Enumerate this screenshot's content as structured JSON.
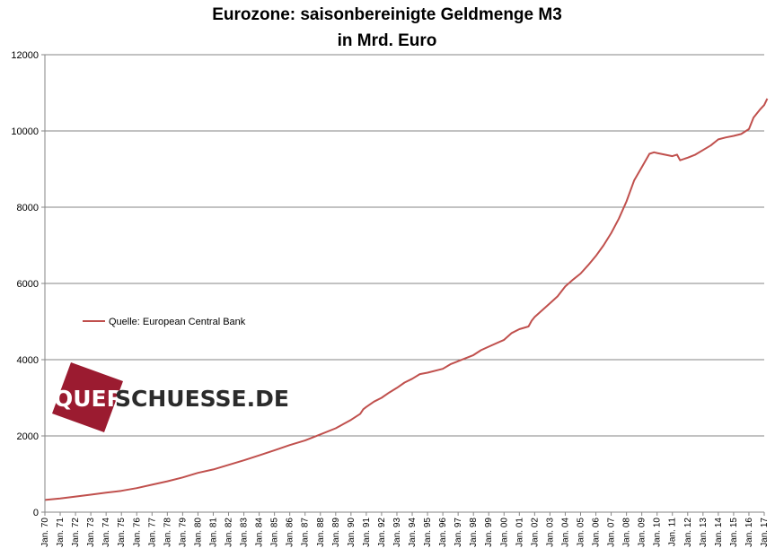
{
  "chart_data": {
    "type": "line",
    "title": "Eurozone: saisonbereinigte Geldmenge M3",
    "subtitle": "in Mrd. Euro",
    "ylim": [
      0,
      12000
    ],
    "y_ticks": [
      "0",
      "2000",
      "4000",
      "6000",
      "8000",
      "10000",
      "12000"
    ],
    "x_tick_labels": [
      "Jan. 70",
      "Jan. 71",
      "Jan. 72",
      "Jan. 73",
      "Jan. 74",
      "Jan. 75",
      "Jan. 76",
      "Jan. 77",
      "Jan. 78",
      "Jan. 79",
      "Jan. 80",
      "Jan. 81",
      "Jan. 82",
      "Jan. 83",
      "Jan. 84",
      "Jan. 85",
      "Jan. 86",
      "Jan. 87",
      "Jan. 88",
      "Jan. 89",
      "Jan. 90",
      "Jan. 91",
      "Jan. 92",
      "Jan. 93",
      "Jan. 94",
      "Jan. 95",
      "Jan. 96",
      "Jan. 97",
      "Jan. 98",
      "Jan. 99",
      "Jan. 00",
      "Jan. 01",
      "Jan. 02",
      "Jan. 03",
      "Jan. 04",
      "Jan. 05",
      "Jan. 06",
      "Jan. 07",
      "Jan. 08",
      "Jan. 09",
      "Jan. 10",
      "Jan. 11",
      "Jan. 12",
      "Jan. 13",
      "Jan. 14",
      "Jan. 15",
      "Jan. 16",
      "Jan. 17"
    ],
    "grid": true,
    "legend_position": "left-middle",
    "series": [
      {
        "name": "Quelle: European Central Bank",
        "color": "#c0504d",
        "points": [
          [
            1970.0,
            320
          ],
          [
            1971.0,
            360
          ],
          [
            1972.0,
            410
          ],
          [
            1973.0,
            460
          ],
          [
            1974.0,
            510
          ],
          [
            1975.0,
            560
          ],
          [
            1976.0,
            630
          ],
          [
            1977.0,
            720
          ],
          [
            1978.0,
            810
          ],
          [
            1979.0,
            910
          ],
          [
            1980.0,
            1030
          ],
          [
            1981.0,
            1120
          ],
          [
            1982.0,
            1240
          ],
          [
            1983.0,
            1360
          ],
          [
            1984.0,
            1490
          ],
          [
            1985.0,
            1620
          ],
          [
            1986.0,
            1760
          ],
          [
            1987.0,
            1880
          ],
          [
            1988.0,
            2040
          ],
          [
            1989.0,
            2200
          ],
          [
            1990.0,
            2420
          ],
          [
            1990.6,
            2580
          ],
          [
            1990.8,
            2700
          ],
          [
            1991.0,
            2760
          ],
          [
            1991.5,
            2900
          ],
          [
            1992.0,
            3000
          ],
          [
            1992.5,
            3140
          ],
          [
            1993.0,
            3260
          ],
          [
            1993.5,
            3400
          ],
          [
            1994.0,
            3500
          ],
          [
            1994.5,
            3620
          ],
          [
            1995.0,
            3660
          ],
          [
            1996.0,
            3760
          ],
          [
            1996.5,
            3880
          ],
          [
            1997.0,
            3960
          ],
          [
            1998.0,
            4120
          ],
          [
            1998.5,
            4250
          ],
          [
            1999.0,
            4340
          ],
          [
            2000.0,
            4520
          ],
          [
            2000.5,
            4700
          ],
          [
            2001.0,
            4800
          ],
          [
            2001.6,
            4870
          ],
          [
            2001.8,
            5020
          ],
          [
            2002.0,
            5120
          ],
          [
            2002.5,
            5300
          ],
          [
            2003.0,
            5480
          ],
          [
            2003.5,
            5660
          ],
          [
            2004.0,
            5920
          ],
          [
            2004.5,
            6100
          ],
          [
            2005.0,
            6260
          ],
          [
            2005.5,
            6480
          ],
          [
            2006.0,
            6720
          ],
          [
            2006.5,
            7000
          ],
          [
            2007.0,
            7320
          ],
          [
            2007.5,
            7700
          ],
          [
            2008.0,
            8150
          ],
          [
            2008.5,
            8700
          ],
          [
            2009.0,
            9050
          ],
          [
            2009.5,
            9400
          ],
          [
            2009.8,
            9440
          ],
          [
            2010.0,
            9420
          ],
          [
            2010.5,
            9380
          ],
          [
            2011.0,
            9340
          ],
          [
            2011.3,
            9380
          ],
          [
            2011.5,
            9230
          ],
          [
            2012.0,
            9300
          ],
          [
            2012.5,
            9380
          ],
          [
            2013.0,
            9500
          ],
          [
            2013.5,
            9620
          ],
          [
            2014.0,
            9780
          ],
          [
            2014.5,
            9830
          ],
          [
            2015.0,
            9870
          ],
          [
            2015.5,
            9920
          ],
          [
            2016.0,
            10050
          ],
          [
            2016.3,
            10350
          ],
          [
            2016.7,
            10550
          ],
          [
            2017.0,
            10680
          ],
          [
            2017.2,
            10850
          ]
        ]
      }
    ]
  },
  "watermark": {
    "part1": "QUER",
    "part2": "SCHUESSE.DE",
    "logo_color": "#9b1b30",
    "text_color_light": "#ffffff",
    "text_color_dark": "#2b2b2b"
  }
}
